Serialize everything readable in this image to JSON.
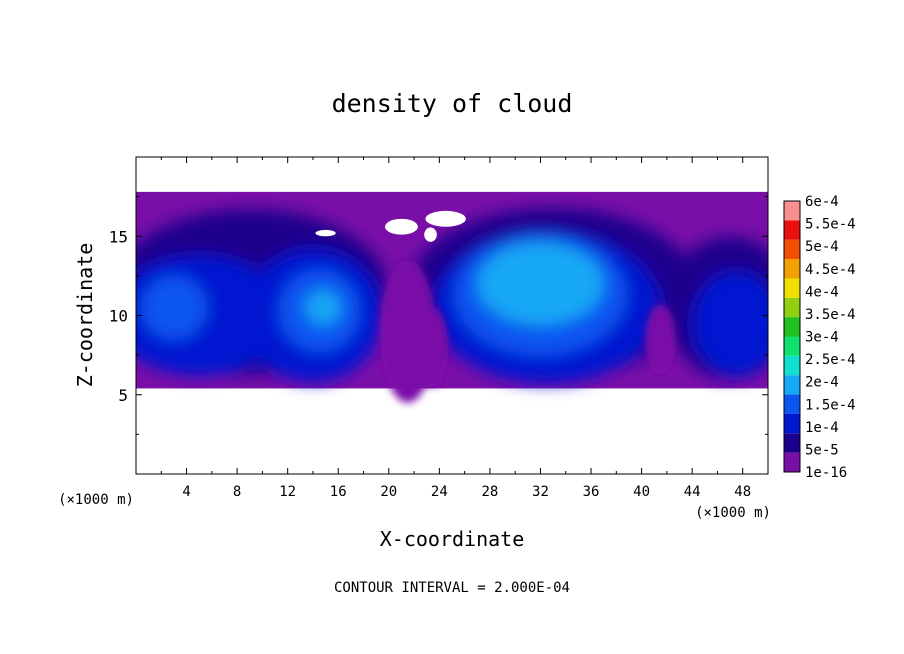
{
  "chart_data": {
    "type": "heatmap",
    "title": "density of cloud",
    "xlabel": "X-coordinate",
    "ylabel": "Z-coordinate",
    "x_unit": "(×1000 m)",
    "y_unit": "(×1000 m)",
    "xlim": [
      0,
      50
    ],
    "ylim": [
      0,
      20
    ],
    "x_ticks": [
      "4",
      "8",
      "12",
      "16",
      "20",
      "24",
      "28",
      "32",
      "36",
      "40",
      "44",
      "48"
    ],
    "y_ticks": [
      "5",
      "10",
      "15"
    ],
    "footer": "CONTOUR INTERVAL = 2.000E-04",
    "colorbar": {
      "levels": [
        "1e-16",
        "5e-5",
        "1e-4",
        "1.5e-4",
        "2e-4",
        "2.5e-4",
        "3e-4",
        "3.5e-4",
        "4e-4",
        "4.5e-4",
        "5e-4",
        "5.5e-4",
        "6e-4"
      ],
      "colors": [
        "#7a0fa8",
        "#1a008c",
        "#0018d0",
        "#0a55f0",
        "#14a8f5",
        "#10e0d0",
        "#10e070",
        "#20c020",
        "#90d010",
        "#f0e000",
        "#f0a000",
        "#f05000",
        "#e81010",
        "#f89090"
      ]
    },
    "field": {
      "cloud_base_z": 5.4,
      "cloud_top_z": 17.8,
      "cells": [
        {
          "x_center": 14.5,
          "z_center": 10.5,
          "peak": "1.5e-4"
        },
        {
          "x_center": 32.0,
          "z_center": 11.5,
          "peak": "2e-4"
        },
        {
          "x_center": 3.0,
          "z_center": 10.5,
          "peak": "1e-4"
        },
        {
          "x_center": 47.5,
          "z_center": 10.0,
          "peak": "1e-4"
        }
      ]
    }
  }
}
